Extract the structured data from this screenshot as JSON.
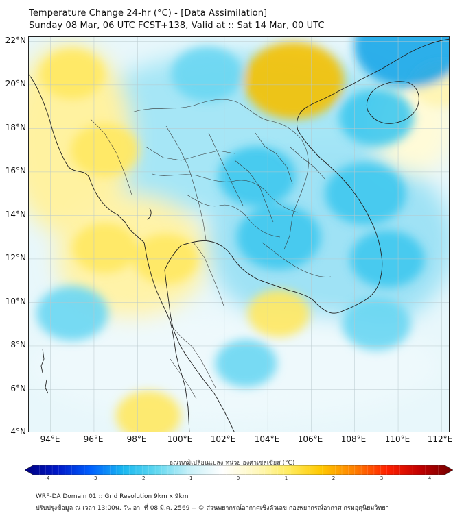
{
  "title_line1": "Temperature Change 24-hr (°C) - [Data Assimilation]",
  "title_line2": "Sunday 08 Mar, 06 UTC FCST+138, Valid at :: Sat 14 Mar, 00 UTC",
  "lat_labels": [
    "22°N",
    "20°N",
    "18°N",
    "16°N",
    "14°N",
    "12°N",
    "10°N",
    "8°N",
    "6°N",
    "4°N"
  ],
  "lon_labels": [
    "94°E",
    "96°E",
    "98°E",
    "100°E",
    "102°E",
    "104°E",
    "106°E",
    "108°E",
    "110°E",
    "112°E"
  ],
  "map_extent": {
    "lon_min": 93,
    "lon_max": 112.4,
    "lat_min": 4,
    "lat_max": 22.2
  },
  "colorbar": {
    "title": "อุณหภูมิเปลี่ยนแปลง หน่วย องศาเซลเซียส (°C)",
    "min": -4,
    "max": 4,
    "ticks": [
      "-4",
      "-3",
      "-2",
      "-1",
      "0",
      "1",
      "2",
      "3",
      "4"
    ],
    "colors": [
      "#000080",
      "#0018c8",
      "#0060ff",
      "#1ab8f0",
      "#60d8f0",
      "#c8f0f8",
      "#ffffff",
      "#fff8c0",
      "#ffec60",
      "#ffc800",
      "#ff8000",
      "#ff2000",
      "#c00000",
      "#700000"
    ]
  },
  "field_anomalies": [
    {
      "type": "warm",
      "lon": 95.0,
      "lat": 20.5,
      "value": 0.8
    },
    {
      "type": "warm",
      "lon": 96.5,
      "lat": 17.0,
      "value": 0.9
    },
    {
      "type": "warm",
      "lon": 96.5,
      "lat": 12.5,
      "value": 0.8
    },
    {
      "type": "warm",
      "lon": 99.3,
      "lat": 12.0,
      "value": 0.8
    },
    {
      "type": "warm",
      "lon": 105.2,
      "lat": 20.2,
      "value": 1.9
    },
    {
      "type": "warm",
      "lon": 104.5,
      "lat": 9.5,
      "value": 0.7
    },
    {
      "type": "warm",
      "lon": 98.5,
      "lat": 4.8,
      "value": 0.8
    },
    {
      "type": "warm",
      "lon": 112.0,
      "lat": 20.0,
      "value": 0.6
    },
    {
      "type": "cold",
      "lon": 101.2,
      "lat": 20.5,
      "value": -1.0
    },
    {
      "type": "cold",
      "lon": 110.5,
      "lat": 21.8,
      "value": -2.2
    },
    {
      "type": "cold",
      "lon": 103.5,
      "lat": 15.8,
      "value": -1.2
    },
    {
      "type": "cold",
      "lon": 104.5,
      "lat": 13.0,
      "value": -1.4
    },
    {
      "type": "cold",
      "lon": 108.5,
      "lat": 15.0,
      "value": -1.3
    },
    {
      "type": "cold",
      "lon": 109.5,
      "lat": 12.0,
      "value": -1.1
    },
    {
      "type": "cold",
      "lon": 95.0,
      "lat": 9.5,
      "value": -1.0
    },
    {
      "type": "cold",
      "lon": 103.0,
      "lat": 7.2,
      "value": -0.7
    },
    {
      "type": "cold",
      "lon": 109.0,
      "lat": 18.5,
      "value": -1.1
    },
    {
      "type": "cold",
      "lon": 109.0,
      "lat": 9.0,
      "value": -0.9
    }
  ],
  "footer_line1": "WRF-DA Domain 01 :: Grid Resolution 9km x 9km",
  "footer_line2": "ปรับปรุงข้อมูล ณ เวลา 13:00น. วัน อา. ที่ 08 มี.ค. 2569 -- © ส่วนพยากรณ์อากาศเชิงตัวเลข กองพยากรณ์อากาศ กรมอุตุนิยมวิทยา"
}
